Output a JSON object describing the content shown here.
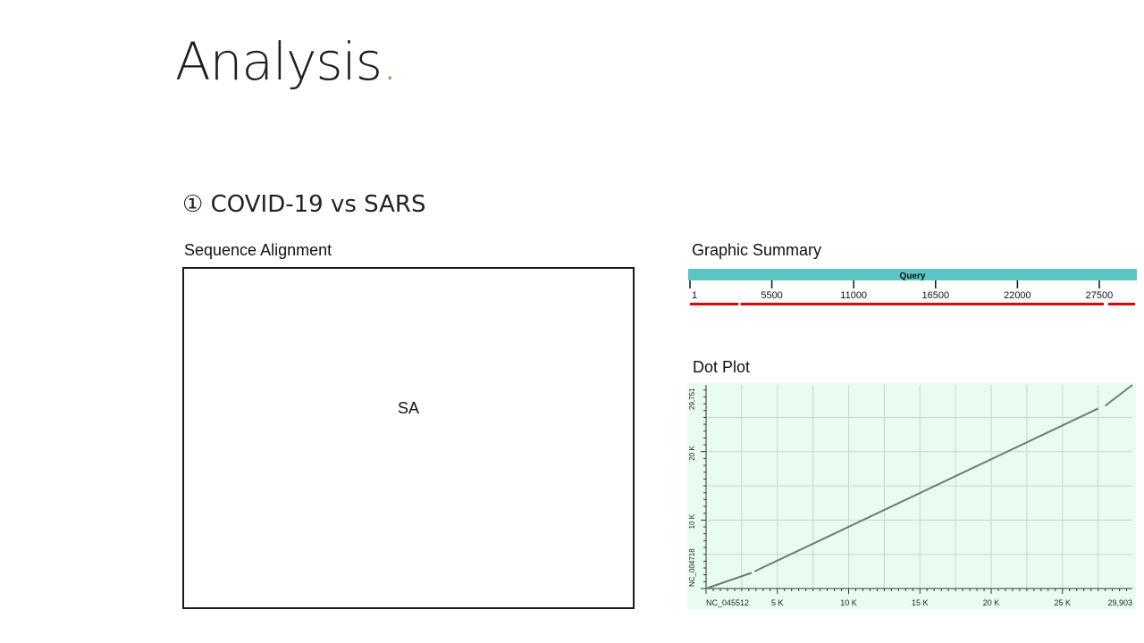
{
  "slide": {
    "title": "Analysis",
    "title_dot": ".",
    "subtitle": "① COVID-19 vs SARS",
    "accent_color": "#b08a64"
  },
  "sequence_alignment": {
    "label": "Sequence Alignment",
    "placeholder": "SA"
  },
  "graphic_summary": {
    "label": "Graphic Summary",
    "query_label": "Query",
    "query_color": "#5bc4c4",
    "hit_color": "#e60000",
    "ticks": [
      1,
      5500,
      11000,
      16500,
      22000,
      27500
    ],
    "query_length": 29903,
    "hit_segments": [
      [
        1,
        3250
      ],
      [
        3400,
        27800
      ],
      [
        28100,
        29903
      ]
    ]
  },
  "dot_plot": {
    "label": "Dot Plot",
    "background": "#e8fdf0",
    "line_color": "#6e7d72",
    "x_axis_name": "NC_045512",
    "y_axis_name": "NC_004718",
    "x_max": 29903,
    "y_max": 29751,
    "x_tick_labels": [
      "5 K",
      "10 K",
      "15 K",
      "20 K",
      "25 K",
      "29,903"
    ],
    "x_tick_values": [
      5000,
      10000,
      15000,
      20000,
      25000,
      29903
    ],
    "y_tick_labels": [
      "10 K",
      "20 K",
      "29,751"
    ],
    "y_tick_values": [
      10000,
      20000,
      29751
    ],
    "alignment_segments": [
      [
        [
          0,
          0
        ],
        [
          3200,
          2300
        ]
      ],
      [
        [
          3400,
          2500
        ],
        [
          27500,
          26300
        ]
      ],
      [
        [
          28000,
          26700
        ],
        [
          29903,
          29751
        ]
      ]
    ]
  }
}
